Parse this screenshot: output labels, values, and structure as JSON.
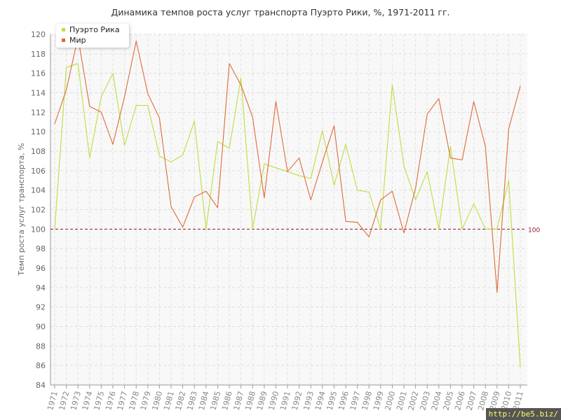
{
  "chart_data": {
    "type": "line",
    "title": "Динамика темпов роста услуг транспорта Пуэрто Рики, %, 1971-2011 гг.",
    "xlabel": "",
    "ylabel": "Темп роста услуг транспорта, %",
    "ylim": [
      84,
      120
    ],
    "yticks": [
      84,
      86,
      88,
      90,
      92,
      94,
      96,
      98,
      100,
      102,
      104,
      106,
      108,
      110,
      112,
      114,
      116,
      118,
      120
    ],
    "categories": [
      "1971",
      "1972",
      "1973",
      "1974",
      "1975",
      "1976",
      "1977",
      "1978",
      "1979",
      "1980",
      "1981",
      "1982",
      "1983",
      "1984",
      "1985",
      "1986",
      "1987",
      "1988",
      "1989",
      "1990",
      "1991",
      "1992",
      "1993",
      "1994",
      "1995",
      "1996",
      "1997",
      "1998",
      "1999",
      "2000",
      "2001",
      "2002",
      "2003",
      "2004",
      "2005",
      "2006",
      "2007",
      "2008",
      "2009",
      "2010",
      "2011"
    ],
    "series": [
      {
        "name": "Пуэрто Рика",
        "color": "#bfdd3e",
        "values": [
          100,
          116.6,
          117.0,
          107.3,
          113.6,
          116.0,
          108.6,
          112.7,
          112.7,
          107.5,
          106.9,
          107.6,
          111.1,
          100.0,
          109.0,
          108.3,
          115.5,
          100.0,
          106.7,
          106.3,
          105.9,
          105.5,
          105.2,
          110.1,
          104.5,
          108.7,
          104.0,
          103.8,
          100.0,
          114.8,
          106.5,
          103.0,
          105.9,
          100.0,
          108.5,
          100.0,
          102.6,
          100.0,
          100.0,
          105.0,
          85.8
        ]
      },
      {
        "name": "Мир",
        "color": "#e06a3a",
        "values": [
          110.8,
          114.3,
          119.7,
          112.6,
          112.0,
          108.7,
          113.6,
          119.3,
          113.9,
          111.4,
          102.3,
          100.2,
          103.3,
          103.9,
          102.2,
          117.0,
          114.8,
          111.5,
          103.2,
          113.1,
          105.9,
          107.3,
          103.0,
          106.9,
          110.6,
          100.8,
          100.7,
          99.2,
          103.0,
          103.9,
          99.6,
          104.2,
          111.8,
          113.4,
          107.3,
          107.1,
          113.1,
          108.5,
          93.5,
          110.3,
          114.7
        ]
      }
    ],
    "reference_line": {
      "value": 100,
      "label": "100",
      "color": "#8b1a2b"
    },
    "grid": true,
    "legend_position": "top-left"
  },
  "watermark": "http://be5.biz/"
}
